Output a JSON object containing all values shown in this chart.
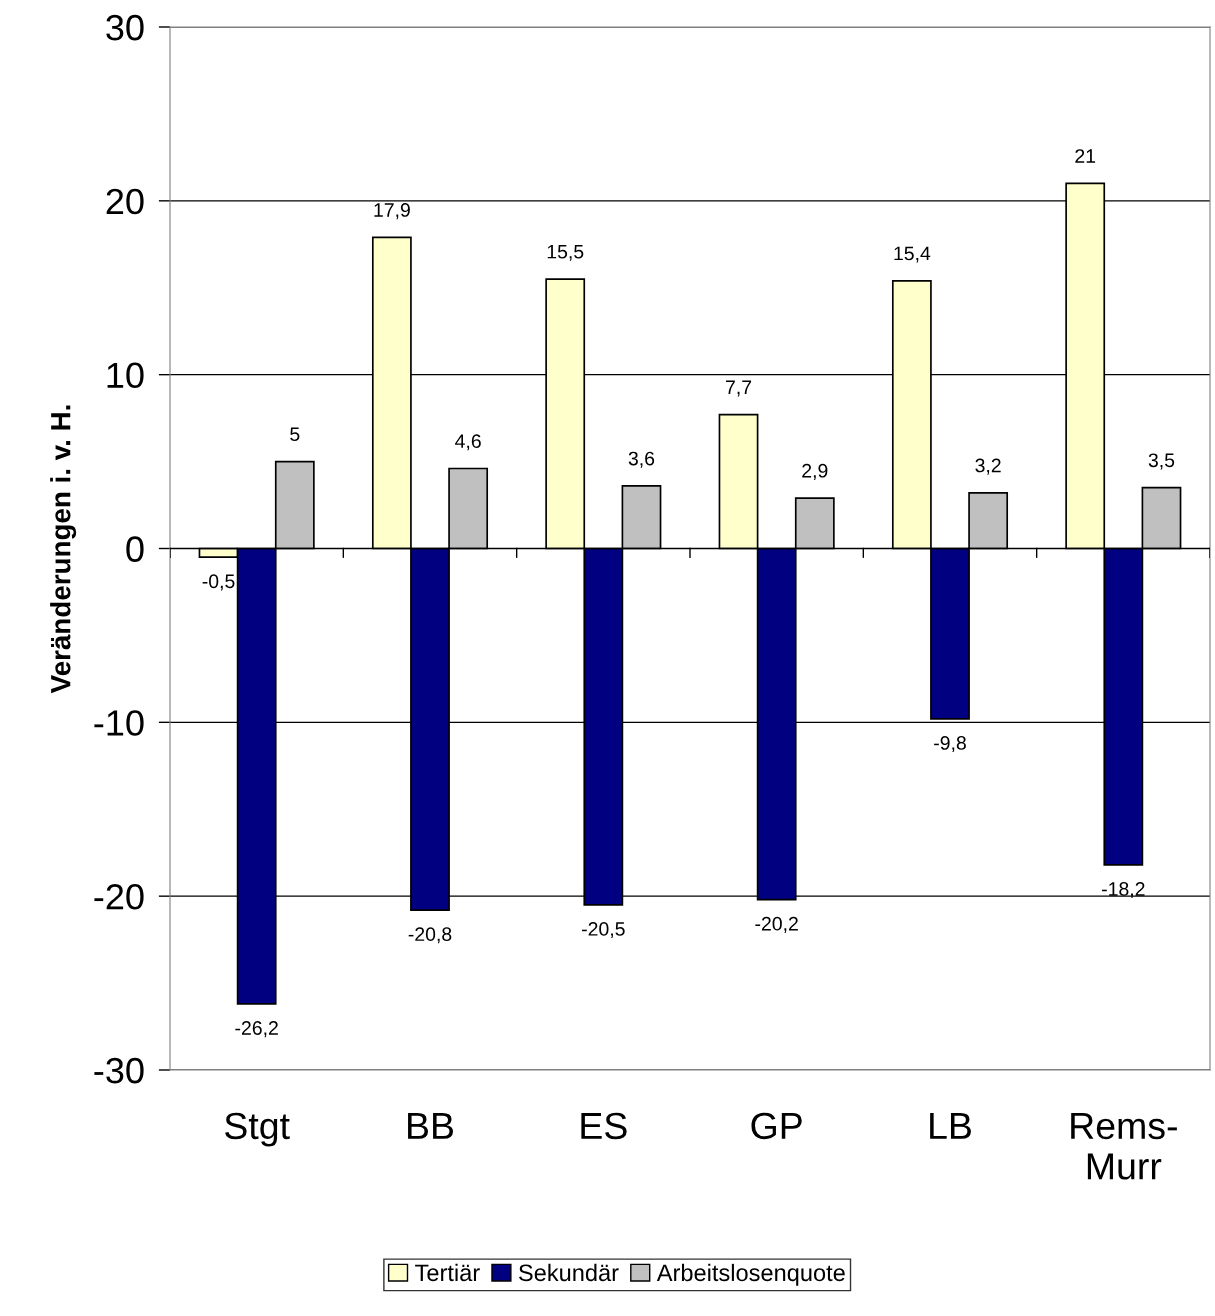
{
  "chart_data": {
    "type": "bar",
    "ylabel": "Veränderungen i. v. H.",
    "categories": [
      "Stgt",
      "BB",
      "ES",
      "GP",
      "LB",
      "Rems-\nMurr"
    ],
    "series": [
      {
        "name": "Tertiär",
        "color": "#ffffcc",
        "values": [
          -0.5,
          17.9,
          15.5,
          7.7,
          15.4,
          21
        ],
        "value_labels": [
          "-0,5",
          "17,9",
          "15,5",
          "7,7",
          "15,4",
          "21"
        ]
      },
      {
        "name": "Sekundär",
        "color": "#000080",
        "values": [
          -26.2,
          -20.8,
          -20.5,
          -20.2,
          -9.8,
          -18.2
        ],
        "value_labels": [
          "-26,2",
          "-20,8",
          "-20,5",
          "-20,2",
          "-9,8",
          "-18,2"
        ]
      },
      {
        "name": "Arbeitslosenquote",
        "color": "#c0c0c0",
        "values": [
          5,
          4.6,
          3.6,
          2.9,
          3.2,
          3.5
        ],
        "value_labels": [
          "5",
          "4,6",
          "3,6",
          "2,9",
          "3,2",
          "3,5"
        ]
      }
    ],
    "ylim": [
      -30,
      30
    ],
    "yticks": [
      -30,
      -20,
      -10,
      0,
      10,
      20,
      30
    ],
    "grid": "y",
    "legend": "bottom"
  }
}
